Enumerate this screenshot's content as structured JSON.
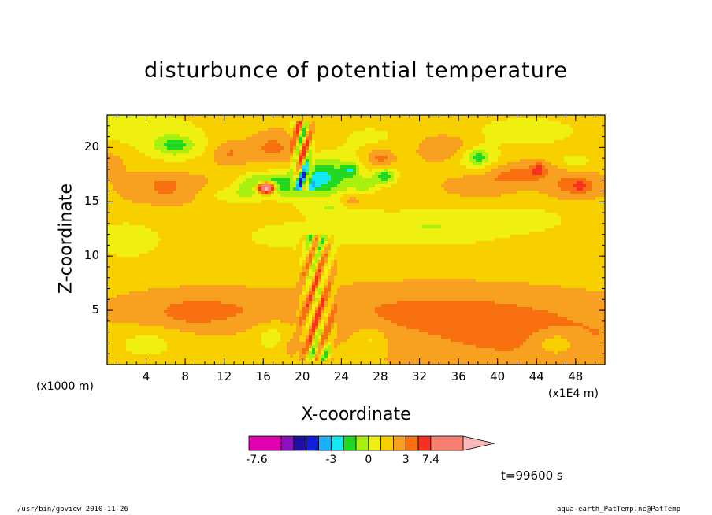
{
  "chart_data": {
    "type": "heatmap",
    "title": "disturbunce of potential temperature",
    "xlabel": "X-coordinate",
    "ylabel": "Z-coordinate",
    "x_unit_left": "(x1000 m)",
    "x_unit_right": "(x1E4 m)",
    "xlim": [
      0,
      51
    ],
    "ylim": [
      0,
      23
    ],
    "x_ticks": [
      "4",
      "8",
      "12",
      "16",
      "20",
      "24",
      "28",
      "32",
      "36",
      "40",
      "44",
      "48"
    ],
    "y_ticks": [
      "5",
      "10",
      "15",
      "20"
    ],
    "colorbar": {
      "levels": [
        -7.6,
        -6.6,
        -5.6,
        -4.6,
        -3.6,
        -2.6,
        -1.6,
        -0.6,
        0.4,
        1.4,
        2.4,
        3.4,
        4.4,
        7.4
      ],
      "tick_labels": [
        "-7.6",
        "-3",
        "0",
        "3",
        "7.4"
      ],
      "colors": [
        "#e000b0",
        "#8a10c0",
        "#1f10a0",
        "#1020d8",
        "#18b0ff",
        "#14e8f0",
        "#22d822",
        "#a8f010",
        "#f0f010",
        "#f8d000",
        "#f8a020",
        "#f87010",
        "#f83020",
        "#f88070",
        "#f8b8b8"
      ]
    },
    "fields": [
      {
        "kind": "base",
        "value": 1.2
      },
      {
        "kind": "blob",
        "x": 44,
        "y": 2.5,
        "sx": 14,
        "sy": 2.8,
        "a": 1.5
      },
      {
        "kind": "blob",
        "x": 10,
        "y": 5,
        "sx": 8,
        "sy": 1.6,
        "a": 1.4
      },
      {
        "kind": "blob",
        "x": 9,
        "y": 4.7,
        "sx": 2.4,
        "sy": 0.9,
        "a": 0.7
      },
      {
        "kind": "blob",
        "x": 33,
        "y": 5,
        "sx": 12,
        "sy": 2,
        "a": 1.3
      },
      {
        "kind": "blob",
        "x": 2,
        "y": 11.5,
        "sx": 4,
        "sy": 1.8,
        "a": -1.6
      },
      {
        "kind": "blob",
        "x": 19,
        "y": 11.8,
        "sx": 6,
        "sy": 1.5,
        "a": -1.3
      },
      {
        "kind": "blob",
        "x": 33,
        "y": 12.6,
        "sx": 9,
        "sy": 1.8,
        "a": -1.8
      },
      {
        "kind": "blob",
        "x": 43,
        "y": 13.4,
        "sx": 5,
        "sy": 1.2,
        "a": -1.1
      },
      {
        "kind": "blob",
        "x": 46,
        "y": 2,
        "sx": 2.5,
        "sy": 1.2,
        "a": -1.7
      },
      {
        "kind": "blob",
        "x": 4,
        "y": 1.8,
        "sx": 3,
        "sy": 1.3,
        "a": -1.4
      },
      {
        "kind": "blob",
        "x": 17,
        "y": 2.5,
        "sx": 2,
        "sy": 1.4,
        "a": -1.4
      },
      {
        "kind": "blob",
        "x": 19.5,
        "y": 1.8,
        "sx": 1.5,
        "sy": 0.9,
        "a": 1.3
      },
      {
        "kind": "blob",
        "x": 22,
        "y": 1,
        "sx": 1.5,
        "sy": 0.8,
        "a": -2.0
      },
      {
        "kind": "blob",
        "x": 27,
        "y": 2.3,
        "sx": 1.6,
        "sy": 1.3,
        "a": -1.3
      },
      {
        "kind": "blob",
        "x": 6,
        "y": 16.3,
        "sx": 4,
        "sy": 1.3,
        "a": 1.2
      },
      {
        "kind": "blob",
        "x": 6,
        "y": 16.5,
        "sx": 1.0,
        "sy": 0.6,
        "a": 0.7
      },
      {
        "kind": "blob",
        "x": 0,
        "y": 18.5,
        "sx": 1.5,
        "sy": 1.0,
        "a": 1.0
      },
      {
        "kind": "blob",
        "x": 7,
        "y": 20,
        "sx": 3.5,
        "sy": 1.4,
        "a": -1.8
      },
      {
        "kind": "blob",
        "x": 7,
        "y": 20.2,
        "sx": 1.4,
        "sy": 0.6,
        "a": -1.6
      },
      {
        "kind": "blob",
        "x": 12.5,
        "y": 19.5,
        "sx": 1.8,
        "sy": 1.0,
        "a": 1.4
      },
      {
        "kind": "blob",
        "x": 17,
        "y": 20,
        "sx": 2.2,
        "sy": 1.3,
        "a": 1.5
      },
      {
        "kind": "blob",
        "x": 2,
        "y": 22,
        "sx": 8,
        "sy": 1.8,
        "a": -1.4
      },
      {
        "kind": "blob",
        "x": 13,
        "y": 15.6,
        "sx": 3,
        "sy": 0.8,
        "a": -1.4
      },
      {
        "kind": "blob",
        "x": 19,
        "y": 16.5,
        "sx": 4,
        "sy": 1.3,
        "a": -2.4
      },
      {
        "kind": "blob",
        "x": 16,
        "y": 16.7,
        "sx": 2.4,
        "sy": 0.9,
        "a": -2.8
      },
      {
        "kind": "blob",
        "x": 16.3,
        "y": 16.3,
        "sx": 0.9,
        "sy": 0.5,
        "a": 10.5
      },
      {
        "kind": "blob",
        "x": 21.5,
        "y": 17.5,
        "sx": 2.0,
        "sy": 1.6,
        "a": -2.6
      },
      {
        "kind": "blob",
        "x": 24,
        "y": 17.5,
        "sx": 2.5,
        "sy": 2.0,
        "a": -2.0
      },
      {
        "kind": "blob",
        "x": 26.5,
        "y": 16.5,
        "sx": 1.5,
        "sy": 0.8,
        "a": -1.6
      },
      {
        "kind": "blob",
        "x": 25,
        "y": 18,
        "sx": 0.8,
        "sy": 0.6,
        "a": -2.4
      },
      {
        "kind": "blob",
        "x": 28.5,
        "y": 17.4,
        "sx": 1.2,
        "sy": 0.8,
        "a": -3.2
      },
      {
        "kind": "blob",
        "x": 28,
        "y": 19,
        "sx": 1.3,
        "sy": 0.9,
        "a": 1.8
      },
      {
        "kind": "blob",
        "x": 23,
        "y": 14.4,
        "sx": 3.5,
        "sy": 0.8,
        "a": -1.4
      },
      {
        "kind": "blob",
        "x": 25,
        "y": 15,
        "sx": 1.2,
        "sy": 0.8,
        "a": 1.6
      },
      {
        "kind": "blob",
        "x": 38,
        "y": 16.4,
        "sx": 3,
        "sy": 0.9,
        "a": 1.0
      },
      {
        "kind": "blob",
        "x": 42,
        "y": 17.5,
        "sx": 3.5,
        "sy": 1.0,
        "a": 1.6
      },
      {
        "kind": "blob",
        "x": 44.2,
        "y": 18,
        "sx": 0.8,
        "sy": 0.6,
        "a": 2.0
      },
      {
        "kind": "blob",
        "x": 48,
        "y": 16.5,
        "sx": 2.5,
        "sy": 1.0,
        "a": 1.8
      },
      {
        "kind": "blob",
        "x": 48.5,
        "y": 16.5,
        "sx": 0.8,
        "sy": 0.5,
        "a": 1.0
      },
      {
        "kind": "blob",
        "x": 38,
        "y": 19,
        "sx": 2.2,
        "sy": 1.2,
        "a": -2.2
      },
      {
        "kind": "blob",
        "x": 38,
        "y": 19.2,
        "sx": 0.8,
        "sy": 0.6,
        "a": -1.6
      },
      {
        "kind": "blob",
        "x": 35,
        "y": 20,
        "sx": 3,
        "sy": 1.2,
        "a": 1.1
      },
      {
        "kind": "blob",
        "x": 48,
        "y": 18.8,
        "sx": 1.5,
        "sy": 0.6,
        "a": -1.7
      },
      {
        "kind": "blob",
        "x": 43,
        "y": 21.5,
        "sx": 6,
        "sy": 1.5,
        "a": -1.5
      },
      {
        "kind": "blob",
        "x": 27,
        "y": 21,
        "sx": 4,
        "sy": 1.5,
        "a": -1.0
      },
      {
        "kind": "stripes",
        "x0": 19,
        "x1": 24,
        "y0": 0.5,
        "y1": 12,
        "amp": 2.6
      },
      {
        "kind": "stripes",
        "x0": 18.5,
        "x1": 21.5,
        "y0": 16,
        "y1": 22.5,
        "amp": 3.8
      }
    ]
  },
  "footer": {
    "left": "/usr/bin/gpview  2010-11-26",
    "right": "aqua-earth_PatTemp.nc@PatTemp"
  },
  "time_label": "t=99600 s"
}
